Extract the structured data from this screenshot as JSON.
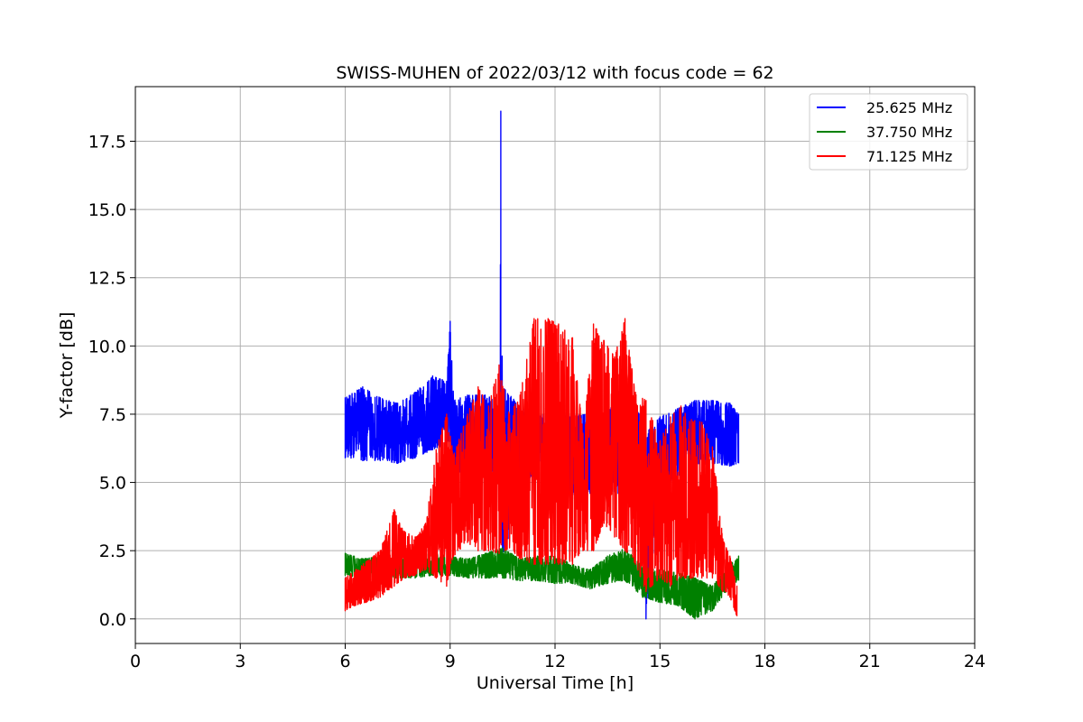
{
  "chart_data": {
    "type": "line",
    "title": "SWISS-MUHEN of 2022/03/12 with focus code = 62",
    "xlabel": "Universal Time [h]",
    "ylabel": "Y-factor [dB]",
    "xlim": [
      0,
      24
    ],
    "ylim": [
      -0.9,
      19.5
    ],
    "x_ticks": [
      "0",
      "3",
      "6",
      "9",
      "12",
      "15",
      "18",
      "21",
      "24"
    ],
    "x_tick_values": [
      0,
      3,
      6,
      9,
      12,
      15,
      18,
      21,
      24
    ],
    "y_ticks": [
      "0.0",
      "2.5",
      "5.0",
      "7.5",
      "10.0",
      "12.5",
      "15.0",
      "17.5"
    ],
    "y_tick_values": [
      0,
      2.5,
      5,
      7.5,
      10,
      12.5,
      15,
      17.5
    ],
    "grid": true,
    "legend_position": "top-right",
    "series": [
      {
        "name": "25.625 MHz",
        "color": "#0000ff",
        "x": [
          6.0,
          6.5,
          7.0,
          7.5,
          8.0,
          8.5,
          8.9,
          9.0,
          9.1,
          9.5,
          10.0,
          10.4,
          10.45,
          10.5,
          11.0,
          11.5,
          12.0,
          12.5,
          13.0,
          13.5,
          14.0,
          14.5,
          14.6,
          15.0,
          15.5,
          16.0,
          16.5,
          17.0,
          17.25
        ],
        "min": [
          5.9,
          5.8,
          5.8,
          5.7,
          5.9,
          6.2,
          6.4,
          6.5,
          5.0,
          5.8,
          5.3,
          5.5,
          5.0,
          2.0,
          5.0,
          5.3,
          4.5,
          4.4,
          4.6,
          4.5,
          4.5,
          4.5,
          0.0,
          4.4,
          5.2,
          5.6,
          5.7,
          5.6,
          5.7
        ],
        "max": [
          8.1,
          8.5,
          8.1,
          7.9,
          8.3,
          8.9,
          8.7,
          10.9,
          8.0,
          8.2,
          8.2,
          8.0,
          18.6,
          8.5,
          7.8,
          7.5,
          7.5,
          7.5,
          7.5,
          7.5,
          8.8,
          7.2,
          6.8,
          7.4,
          7.7,
          8.0,
          8.0,
          7.9,
          7.5
        ]
      },
      {
        "name": "37.750 MHz",
        "color": "#008000",
        "x": [
          6.0,
          6.5,
          7.0,
          7.5,
          8.0,
          8.5,
          9.0,
          9.5,
          10.0,
          10.5,
          11.0,
          11.5,
          12.0,
          12.5,
          13.0,
          13.5,
          14.0,
          14.5,
          15.0,
          15.5,
          16.0,
          16.5,
          17.0,
          17.25
        ],
        "min": [
          1.6,
          1.5,
          1.5,
          1.5,
          1.5,
          1.6,
          1.6,
          1.5,
          1.5,
          1.5,
          1.4,
          1.4,
          1.3,
          1.3,
          1.1,
          1.3,
          1.4,
          0.8,
          0.6,
          0.5,
          0.0,
          0.3,
          1.2,
          1.4
        ],
        "max": [
          2.4,
          2.2,
          2.3,
          2.2,
          2.3,
          2.4,
          2.3,
          2.2,
          2.4,
          2.6,
          2.2,
          2.3,
          2.3,
          2.0,
          1.8,
          2.3,
          2.6,
          1.9,
          1.8,
          1.7,
          1.5,
          1.2,
          2.0,
          2.3
        ]
      },
      {
        "name": "71.125 MHz",
        "color": "#ff0000",
        "x": [
          6.0,
          6.3,
          6.6,
          7.0,
          7.4,
          7.7,
          8.0,
          8.3,
          8.6,
          8.9,
          9.1,
          9.5,
          9.8,
          10.1,
          10.4,
          10.7,
          11.0,
          11.4,
          11.8,
          12.1,
          12.5,
          12.8,
          13.1,
          13.4,
          13.7,
          14.0,
          14.3,
          14.6,
          15.0,
          15.3,
          15.6,
          15.9,
          16.2,
          16.5,
          16.8,
          17.0,
          17.2
        ],
        "min": [
          0.3,
          0.5,
          0.6,
          0.8,
          1.2,
          1.5,
          1.6,
          1.8,
          1.5,
          1.2,
          2.3,
          2.8,
          2.5,
          2.5,
          2.4,
          2.6,
          2.2,
          2.0,
          2.0,
          2.0,
          2.0,
          2.5,
          2.5,
          3.5,
          3.0,
          2.5,
          2.0,
          1.0,
          1.5,
          1.2,
          1.5,
          1.5,
          1.5,
          1.5,
          1.0,
          0.8,
          0.1
        ],
        "max": [
          1.5,
          1.8,
          2.1,
          2.5,
          4.0,
          3.2,
          3.0,
          3.5,
          6.2,
          7.5,
          6.0,
          7.5,
          8.5,
          7.8,
          9.3,
          7.5,
          8.2,
          11.0,
          11.0,
          10.8,
          10.3,
          6.8,
          10.8,
          10.2,
          9.6,
          11.0,
          8.3,
          8.0,
          6.5,
          7.4,
          7.8,
          7.3,
          7.2,
          6.3,
          2.9,
          2.3,
          1.2
        ]
      }
    ]
  }
}
